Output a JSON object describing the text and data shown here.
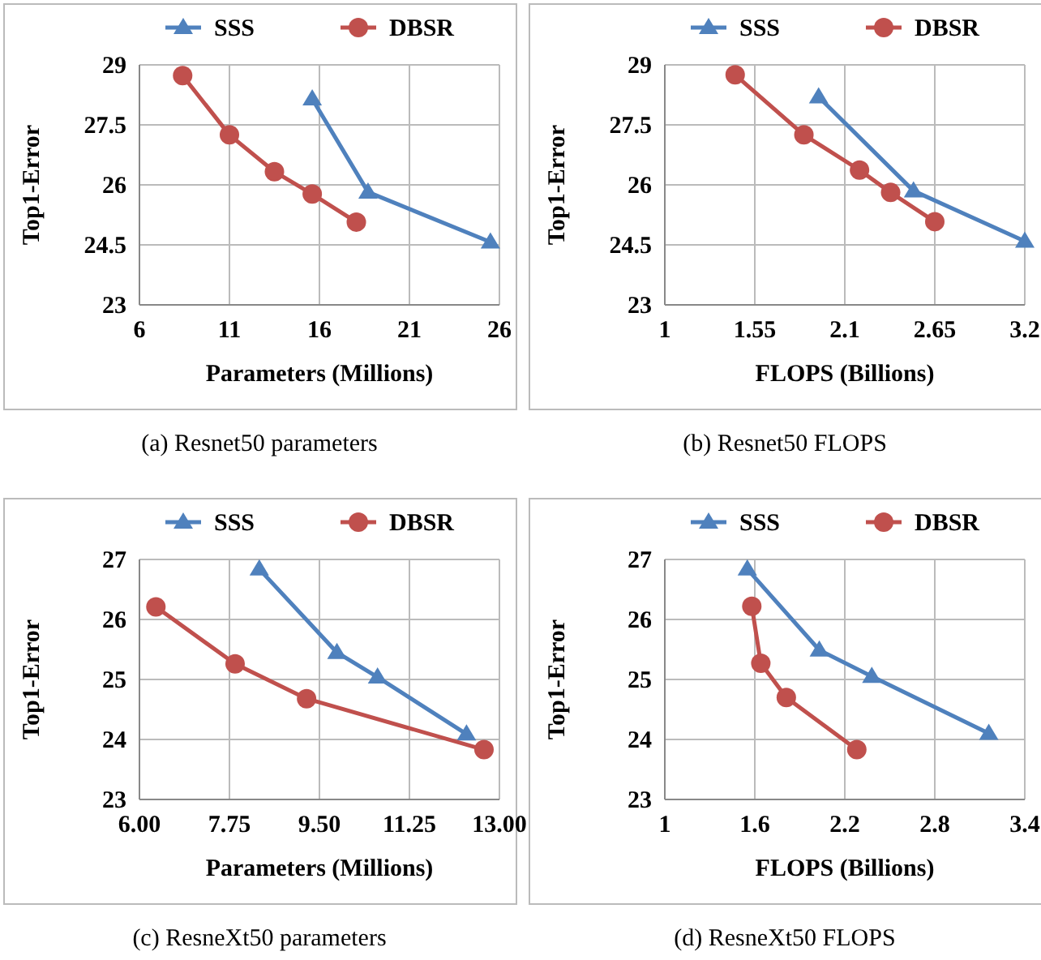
{
  "chart_data": [
    {
      "type": "line",
      "title": "(a)  Resnet50 parameters",
      "xlabel": "Parameters (Millions)",
      "ylabel": "Top1-Error",
      "xlim": [
        6,
        26
      ],
      "xticks": [
        6,
        11,
        16,
        21,
        26
      ],
      "ylim": [
        23,
        29
      ],
      "yticks": [
        23,
        24.5,
        26,
        27.5,
        29
      ],
      "grid": true,
      "legend": "top",
      "series": [
        {
          "name": "SSS",
          "color": "#4f81bd",
          "marker": "triangle",
          "x": [
            15.6,
            18.7,
            25.5
          ],
          "values": [
            28.15,
            25.82,
            24.57
          ]
        },
        {
          "name": "DBSR",
          "color": "#c0504d",
          "marker": "circle",
          "x": [
            8.4,
            11,
            13.5,
            15.6,
            18.05
          ],
          "values": [
            28.73,
            27.25,
            26.33,
            25.77,
            25.07
          ]
        }
      ]
    },
    {
      "type": "line",
      "title": "(b)  Resnet50 FLOPS",
      "xlabel": "FLOPS (Billions)",
      "ylabel": "Top1-Error",
      "xlim": [
        1,
        3.2
      ],
      "xticks": [
        1,
        1.55,
        2.1,
        2.65,
        3.2
      ],
      "ylim": [
        23,
        29
      ],
      "yticks": [
        23,
        24.5,
        26,
        27.5,
        29
      ],
      "grid": true,
      "legend": "top",
      "series": [
        {
          "name": "SSS",
          "color": "#4f81bd",
          "marker": "triangle",
          "x": [
            1.94,
            2.52,
            3.2
          ],
          "values": [
            28.2,
            25.85,
            24.59
          ]
        },
        {
          "name": "DBSR",
          "color": "#c0504d",
          "marker": "circle",
          "x": [
            1.43,
            1.85,
            2.19,
            2.38,
            2.65
          ],
          "values": [
            28.75,
            27.25,
            26.37,
            25.81,
            25.08
          ]
        }
      ]
    },
    {
      "type": "line",
      "title": "(c)  ResneXt50 parameters",
      "xlabel": "Parameters (Millions)",
      "ylabel": "Top1-Error",
      "xlim": [
        6,
        13
      ],
      "xticks": [
        {
          "value": 6,
          "label": "6.00"
        },
        {
          "value": 7.75,
          "label": "7.75"
        },
        {
          "value": 9.5,
          "label": "9.50"
        },
        {
          "value": 11.25,
          "label": "11.25"
        },
        {
          "value": 13,
          "label": "13.00"
        }
      ],
      "ylim": [
        23,
        27
      ],
      "yticks": [
        23,
        24,
        25,
        26,
        27
      ],
      "grid": true,
      "legend": "top",
      "series": [
        {
          "name": "SSS",
          "color": "#4f81bd",
          "marker": "triangle",
          "x": [
            8.33,
            9.84,
            10.63,
            12.36
          ],
          "values": [
            26.84,
            25.45,
            25.04,
            24.09
          ]
        },
        {
          "name": "DBSR",
          "color": "#c0504d",
          "marker": "circle",
          "x": [
            6.32,
            7.86,
            9.25,
            12.7
          ],
          "values": [
            26.21,
            25.26,
            24.68,
            23.83
          ]
        }
      ]
    },
    {
      "type": "line",
      "title": "(d)  ResneXt50 FLOPS",
      "xlabel": "FLOPS (Billions)",
      "ylabel": "Top1-Error",
      "xlim": [
        1,
        3.4
      ],
      "xticks": [
        1,
        1.6,
        2.2,
        2.8,
        3.4
      ],
      "ylim": [
        23,
        27
      ],
      "yticks": [
        23,
        24,
        25,
        26,
        27
      ],
      "grid": true,
      "legend": "top",
      "series": [
        {
          "name": "SSS",
          "color": "#4f81bd",
          "marker": "triangle",
          "x": [
            1.55,
            2.03,
            2.38,
            3.16
          ],
          "values": [
            26.84,
            25.49,
            25.05,
            24.1
          ]
        },
        {
          "name": "DBSR",
          "color": "#c0504d",
          "marker": "circle",
          "x": [
            1.58,
            1.64,
            1.81,
            2.28
          ],
          "values": [
            26.22,
            25.27,
            24.7,
            23.83
          ]
        }
      ]
    }
  ]
}
